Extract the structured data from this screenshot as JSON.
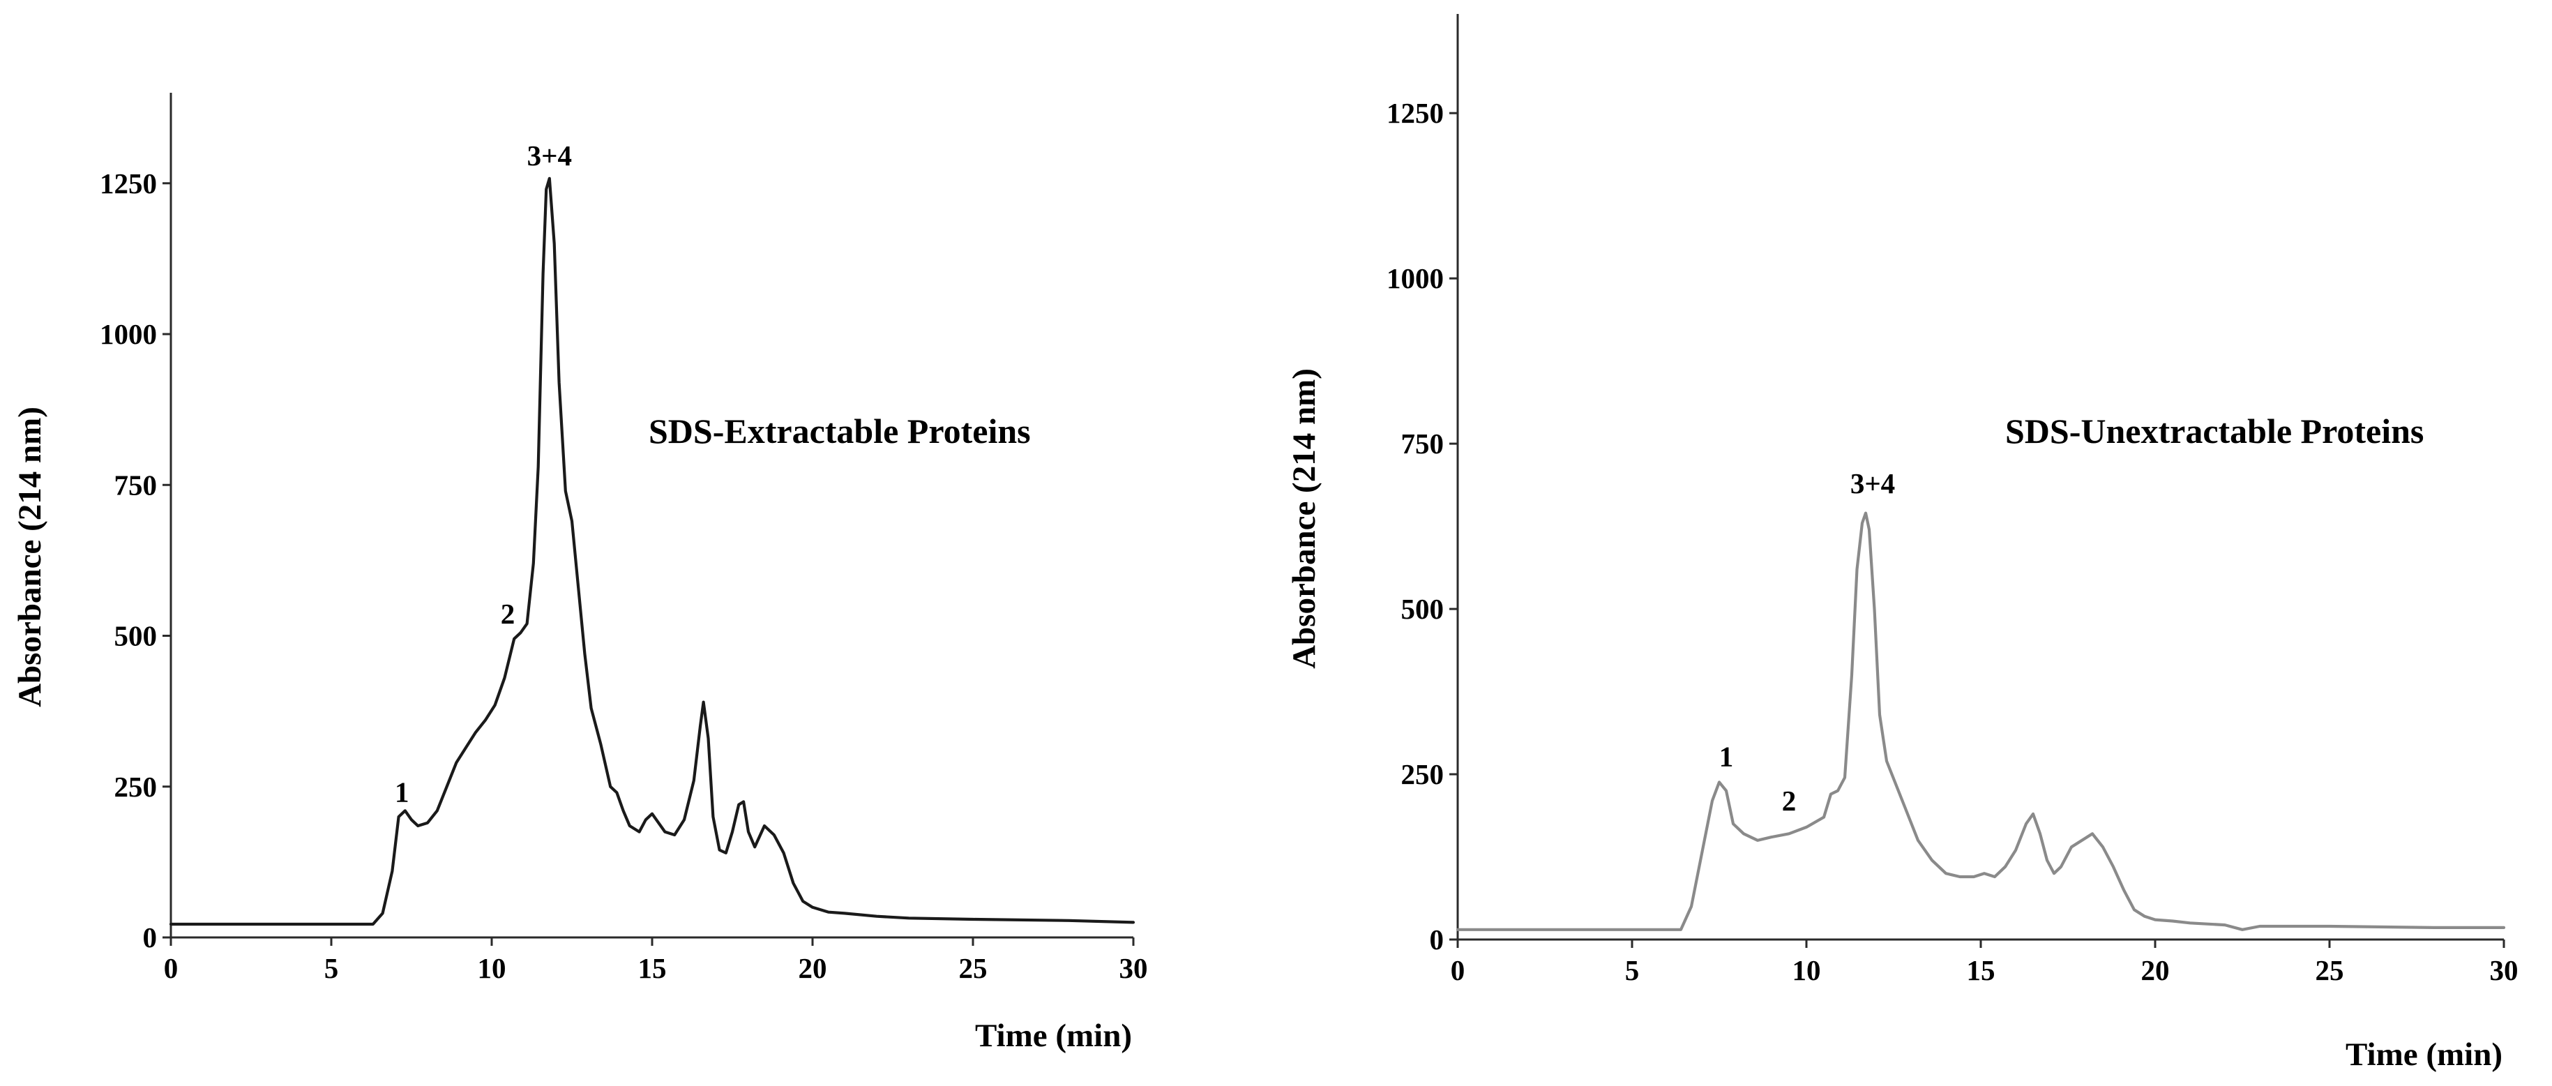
{
  "chart_data": [
    {
      "type": "line",
      "title": "",
      "annotation": "SDS-Extractable Proteins",
      "xlabel": "Time (min)",
      "ylabel": "Absorbance (214 nm)",
      "xlim": [
        0,
        30
      ],
      "ylim": [
        0,
        1400
      ],
      "xticks": [
        0,
        5,
        10,
        15,
        20,
        25,
        30
      ],
      "yticks": [
        0,
        250,
        500,
        750,
        1000,
        1250
      ],
      "grid": false,
      "line_color": "#1a1a1a",
      "series": [
        {
          "name": "SDS-Extractable Proteins",
          "x": [
            0,
            6.3,
            6.6,
            6.9,
            7.1,
            7.3,
            7.5,
            7.7,
            8.0,
            8.3,
            8.6,
            8.9,
            9.2,
            9.5,
            9.8,
            10.1,
            10.4,
            10.7,
            10.9,
            11.1,
            11.3,
            11.45,
            11.6,
            11.7,
            11.8,
            11.95,
            12.1,
            12.3,
            12.5,
            12.7,
            12.9,
            13.1,
            13.4,
            13.7,
            13.9,
            14.1,
            14.3,
            14.6,
            14.8,
            15.0,
            15.2,
            15.4,
            15.7,
            16.0,
            16.3,
            16.5,
            16.6,
            16.75,
            16.9,
            17.1,
            17.3,
            17.5,
            17.7,
            17.85,
            18.0,
            18.2,
            18.5,
            18.8,
            19.1,
            19.4,
            19.7,
            20.0,
            20.5,
            21.0,
            22.0,
            23.0,
            25.0,
            28.0,
            30.0
          ],
          "y": [
            22,
            22,
            40,
            110,
            200,
            210,
            195,
            185,
            190,
            210,
            250,
            290,
            315,
            340,
            360,
            385,
            430,
            495,
            505,
            520,
            620,
            780,
            1100,
            1240,
            1258,
            1150,
            920,
            740,
            690,
            580,
            470,
            380,
            320,
            250,
            240,
            210,
            185,
            175,
            195,
            205,
            190,
            175,
            170,
            195,
            260,
            350,
            390,
            330,
            200,
            145,
            140,
            175,
            220,
            225,
            175,
            150,
            185,
            170,
            140,
            90,
            60,
            50,
            42,
            40,
            35,
            32,
            30,
            28,
            25
          ]
        }
      ],
      "point_labels": [
        {
          "text": "1",
          "x": 7.2,
          "y": 225
        },
        {
          "text": "2",
          "x": 10.5,
          "y": 520
        },
        {
          "text": "3+4",
          "x": 11.8,
          "y": 1280
        }
      ]
    },
    {
      "type": "line",
      "title": "",
      "annotation": "SDS-Unextractable Proteins",
      "xlabel": "Time (min)",
      "ylabel": "Absorbance (214 nm)",
      "xlim": [
        0,
        30
      ],
      "ylim": [
        0,
        1400
      ],
      "xticks": [
        0,
        5,
        10,
        15,
        20,
        25,
        30
      ],
      "yticks": [
        0,
        250,
        500,
        750,
        1000,
        1250
      ],
      "grid": false,
      "line_color": "#8a8a8a",
      "series": [
        {
          "name": "SDS-Unextractable Proteins",
          "x": [
            0,
            6.4,
            6.7,
            7.0,
            7.3,
            7.5,
            7.7,
            7.9,
            8.2,
            8.6,
            9.0,
            9.5,
            10.0,
            10.5,
            10.7,
            10.9,
            11.1,
            11.3,
            11.45,
            11.6,
            11.7,
            11.8,
            11.95,
            12.1,
            12.3,
            12.6,
            12.9,
            13.2,
            13.6,
            14.0,
            14.4,
            14.8,
            15.1,
            15.4,
            15.7,
            16.0,
            16.3,
            16.5,
            16.7,
            16.9,
            17.1,
            17.3,
            17.6,
            17.9,
            18.2,
            18.5,
            18.8,
            19.1,
            19.4,
            19.7,
            20.0,
            20.5,
            21.0,
            22.0,
            22.5,
            23.0,
            25.0,
            28.0,
            30.0
          ],
          "y": [
            15,
            15,
            50,
            130,
            210,
            238,
            225,
            175,
            160,
            150,
            155,
            160,
            170,
            185,
            220,
            225,
            245,
            400,
            560,
            630,
            645,
            620,
            500,
            340,
            270,
            230,
            190,
            150,
            120,
            100,
            95,
            95,
            100,
            95,
            110,
            135,
            175,
            190,
            160,
            120,
            100,
            110,
            140,
            150,
            160,
            140,
            110,
            75,
            45,
            35,
            30,
            28,
            25,
            22,
            15,
            20,
            20,
            18,
            18
          ]
        }
      ],
      "point_labels": [
        {
          "text": "1",
          "x": 7.7,
          "y": 262
        },
        {
          "text": "2",
          "x": 9.5,
          "y": 195
        },
        {
          "text": "3+4",
          "x": 11.9,
          "y": 675
        }
      ]
    }
  ]
}
